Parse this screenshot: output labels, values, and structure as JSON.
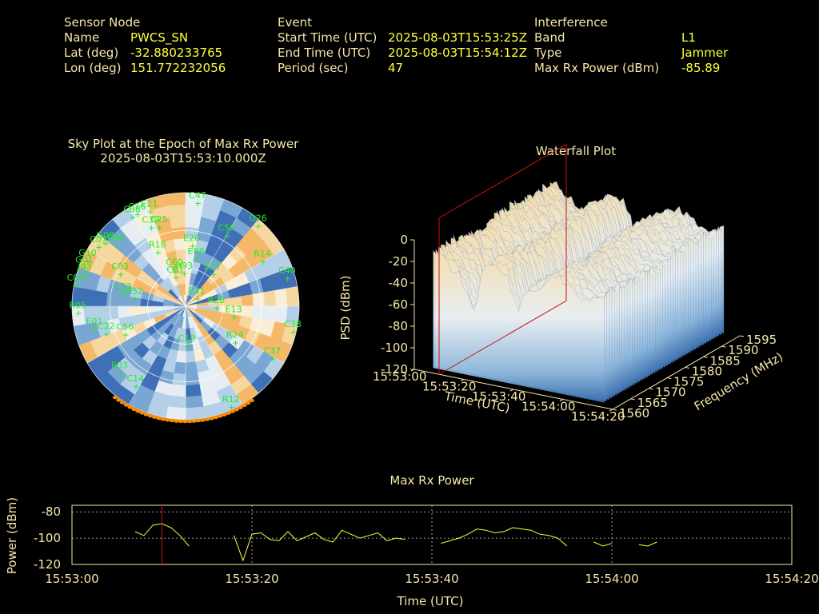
{
  "header": {
    "sensor": {
      "heading": "Sensor Node",
      "rows": [
        {
          "label": "Name",
          "value": "PWCS_SN"
        },
        {
          "label": "Lat (deg)",
          "value": "-32.880233765"
        },
        {
          "label": "Lon (deg)",
          "value": "151.772232056"
        }
      ]
    },
    "event": {
      "heading": "Event",
      "rows": [
        {
          "label": "Start Time (UTC)",
          "value": "2025-08-03T15:53:25Z"
        },
        {
          "label": "End Time (UTC)",
          "value": "2025-08-03T15:54:12Z"
        },
        {
          "label": "Period (sec)",
          "value": "47"
        }
      ]
    },
    "interference": {
      "heading": "Interference",
      "rows": [
        {
          "label": "Band",
          "value": "L1"
        },
        {
          "label": "Type",
          "value": "Jammer"
        },
        {
          "label": "Max Rx Power (dBm)",
          "value": "-85.89"
        }
      ]
    }
  },
  "colors": {
    "text": "#f5e6a8",
    "value": "#ffff3a",
    "satellite": "#22ee22",
    "jammer_marker": "#ff8c00",
    "line": "#ffff3a",
    "cursor": "#cc1111",
    "waterfall_high": "#f7dfb0",
    "waterfall_low": "#3f78b8"
  },
  "chart_data": [
    {
      "type": "scatter",
      "name": "sky-plot",
      "title": "Sky Plot at the Epoch of Max Rx Power",
      "subtitle": "2025-08-03T15:53:10.000Z",
      "satellites": [
        {
          "id": "E21",
          "az": 340,
          "el": 84
        },
        {
          "id": "C47",
          "az": 6,
          "el": 86
        },
        {
          "id": "C08",
          "az": 330,
          "el": 86
        },
        {
          "id": "C16",
          "az": 333,
          "el": 86
        },
        {
          "id": "C25",
          "az": 342,
          "el": 70
        },
        {
          "id": "C39",
          "az": 337,
          "el": 72
        },
        {
          "id": "C56",
          "az": 28,
          "el": 68
        },
        {
          "id": "G26",
          "az": 40,
          "el": 88
        },
        {
          "id": "G08",
          "az": 310,
          "el": 84
        },
        {
          "id": "C40",
          "az": 313,
          "el": 76
        },
        {
          "id": "C07",
          "az": 306,
          "el": 86
        },
        {
          "id": "R18",
          "az": 334,
          "el": 52
        },
        {
          "id": "E20",
          "az": 5,
          "el": 52
        },
        {
          "id": "E08",
          "az": 11,
          "el": 42
        },
        {
          "id": "R14",
          "az": 57,
          "el": 72
        },
        {
          "id": "C60",
          "az": 344,
          "el": 34
        },
        {
          "id": "C01",
          "az": 342,
          "el": 28
        },
        {
          "id": "G10",
          "az": 297,
          "el": 88
        },
        {
          "id": "C03",
          "az": 299,
          "el": 60
        },
        {
          "id": "G01",
          "az": 293,
          "el": 88
        },
        {
          "id": "J03",
          "az": 290,
          "el": 84
        },
        {
          "id": "H93",
          "az": 356,
          "el": 30
        },
        {
          "id": "E07",
          "az": 36,
          "el": 36
        },
        {
          "id": "C33",
          "az": 285,
          "el": 52
        },
        {
          "id": "C40b",
          "az": 72,
          "el": 84
        },
        {
          "id": "C04",
          "az": 283,
          "el": 90
        },
        {
          "id": "R52",
          "az": 283,
          "el": 42
        },
        {
          "id": "R28",
          "az": 84,
          "el": 24
        },
        {
          "id": "E31",
          "az": 41,
          "el": 13
        },
        {
          "id": "R05",
          "az": 269,
          "el": 86
        },
        {
          "id": "C56b",
          "az": 249,
          "el": 52
        },
        {
          "id": "E01",
          "az": 259,
          "el": 74
        },
        {
          "id": "C22",
          "az": 254,
          "el": 66
        },
        {
          "id": "E13",
          "az": 97,
          "el": 38
        },
        {
          "id": "C19",
          "az": 179,
          "el": 28
        },
        {
          "id": "E03",
          "az": 227,
          "el": 72
        },
        {
          "id": "R24",
          "az": 123,
          "el": 46
        },
        {
          "id": "C37",
          "az": 119,
          "el": 78
        },
        {
          "id": "C38",
          "az": 101,
          "el": 86
        },
        {
          "id": "C14",
          "az": 214,
          "el": 72
        },
        {
          "id": "R12",
          "az": 155,
          "el": 84
        }
      ],
      "jammer_arc": {
        "az_start": 145,
        "az_end": 218
      }
    },
    {
      "type": "area",
      "name": "waterfall-plot",
      "title": "Waterfall Plot",
      "xlabel": "Time (UTC)",
      "ylabel": "Frequency (MHz)",
      "zlabel": "PSD (dBm)",
      "time_ticks": [
        "15:53:00",
        "15:53:20",
        "15:53:40",
        "15:54:00",
        "15:54:20"
      ],
      "freq_ticks": [
        1560,
        1565,
        1570,
        1575,
        1580,
        1585,
        1590,
        1595
      ],
      "psd_ticks": [
        0,
        -20,
        -40,
        -60,
        -80,
        -100,
        -120
      ],
      "xlim": [
        "15:53:00",
        "15:54:20"
      ],
      "ylim": [
        1560,
        1595
      ],
      "zlim": [
        -120,
        0
      ],
      "marker_time": "15:53:10"
    },
    {
      "type": "line",
      "name": "max-rx-power",
      "title": "Max Rx Power",
      "xlabel": "Time (UTC)",
      "ylabel": "Power (dBm)",
      "xlim": [
        0,
        80
      ],
      "ylim": [
        -120,
        -75
      ],
      "x_tick_labels": [
        "15:53:00",
        "15:53:20",
        "15:53:40",
        "15:54:00",
        "15:54:20"
      ],
      "x_tick_values": [
        0,
        20,
        40,
        60,
        80
      ],
      "y_ticks": [
        -80,
        -100,
        -120
      ],
      "grid": true,
      "marker_x": 10,
      "segments": [
        [
          [
            7,
            -95
          ],
          [
            8,
            -98
          ],
          [
            9,
            -90
          ],
          [
            10,
            -89
          ],
          [
            11,
            -92
          ],
          [
            12,
            -98
          ],
          [
            13,
            -106
          ]
        ],
        [
          [
            18,
            -98
          ],
          [
            19,
            -117
          ],
          [
            20,
            -97
          ],
          [
            21,
            -96
          ],
          [
            22,
            -101
          ],
          [
            23,
            -102
          ],
          [
            24,
            -95
          ],
          [
            25,
            -102
          ],
          [
            26,
            -99
          ],
          [
            27,
            -96
          ],
          [
            28,
            -101
          ],
          [
            29,
            -103
          ],
          [
            30,
            -94
          ],
          [
            31,
            -97
          ],
          [
            32,
            -100
          ],
          [
            33,
            -98
          ],
          [
            34,
            -96
          ],
          [
            35,
            -102
          ],
          [
            36,
            -100
          ],
          [
            37,
            -101
          ]
        ],
        [
          [
            41,
            -104
          ],
          [
            42,
            -102
          ],
          [
            43,
            -100
          ],
          [
            44,
            -97
          ],
          [
            45,
            -93
          ],
          [
            46,
            -94
          ],
          [
            47,
            -96
          ],
          [
            48,
            -95
          ],
          [
            49,
            -92
          ],
          [
            50,
            -93
          ],
          [
            51,
            -94
          ],
          [
            52,
            -97
          ],
          [
            53,
            -98
          ],
          [
            54,
            -100
          ],
          [
            55,
            -106
          ]
        ],
        [
          [
            58,
            -103
          ],
          [
            59,
            -106
          ],
          [
            60,
            -104
          ]
        ],
        [
          [
            63,
            -105
          ],
          [
            64,
            -106
          ],
          [
            65,
            -103
          ]
        ]
      ]
    }
  ]
}
